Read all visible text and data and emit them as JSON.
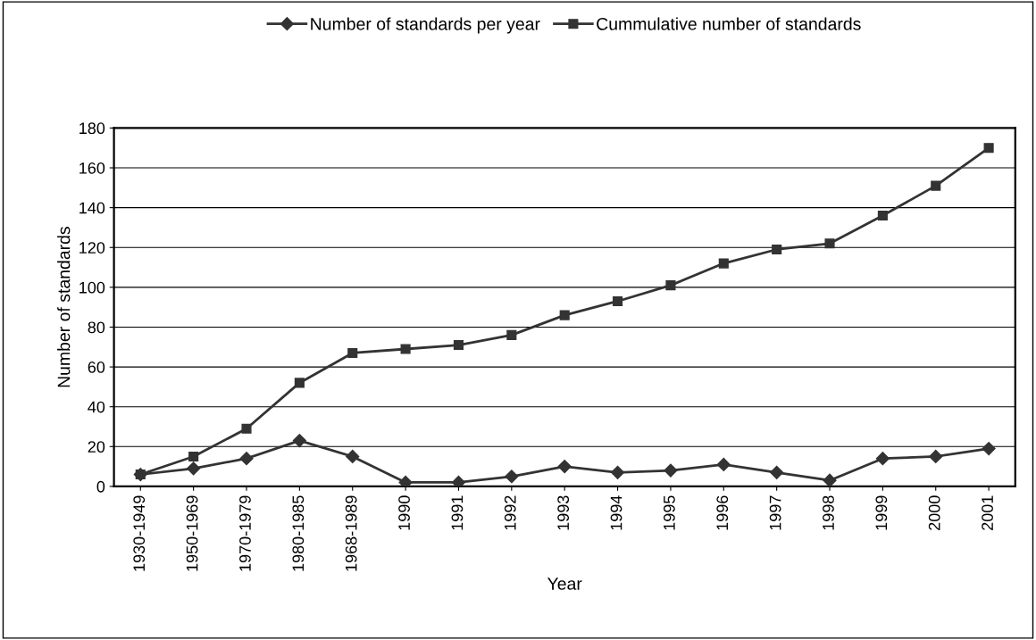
{
  "chart_data": {
    "type": "line",
    "xlabel": "Year",
    "ylabel": "Number of standards",
    "categories": [
      "1930-1949",
      "1950-1969",
      "1970-1979",
      "1980-1985",
      "1968-1989",
      "1990",
      "1991",
      "1992",
      "1993",
      "1994",
      "1995",
      "1996",
      "1997",
      "1998",
      "1999",
      "2000",
      "2001"
    ],
    "series": [
      {
        "name": "Number of standards per year",
        "color": "#333333",
        "marker": "diamond",
        "values": [
          6,
          9,
          14,
          23,
          15,
          2,
          2,
          5,
          10,
          7,
          8,
          11,
          7,
          3,
          14,
          15,
          19
        ]
      },
      {
        "name": "Cummulative number of standards",
        "color": "#333333",
        "marker": "square",
        "values": [
          6,
          15,
          29,
          52,
          67,
          69,
          71,
          76,
          86,
          93,
          101,
          112,
          119,
          122,
          136,
          151,
          170
        ]
      }
    ],
    "ylim": [
      0,
      180
    ],
    "yticks": [
      0,
      20,
      40,
      60,
      80,
      100,
      120,
      140,
      160,
      180
    ],
    "grid": "y",
    "legend": "top",
    "line_style": "solid"
  }
}
